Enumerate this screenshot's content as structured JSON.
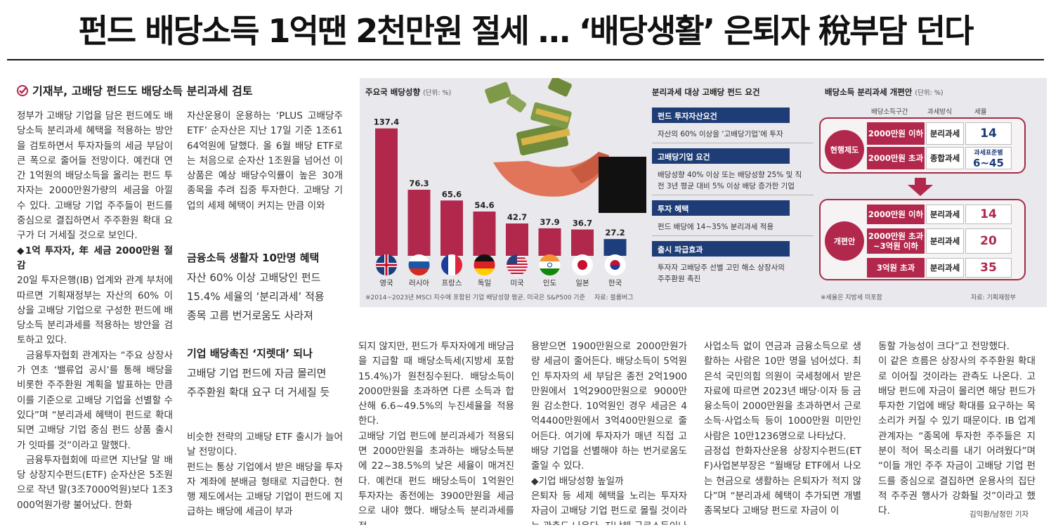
{
  "headline": "펀드 배당소득 1억땐 2천만원 절세 … ‘배당생활’ 은퇴자 稅부담 던다",
  "subhead": "기재부, 고배당 펀드도 배당소득 분리과세 검토",
  "col1": [
    "정부가 고배당 기업을 담은 펀드에도 배당소득 분리과세 혜택을 적용하는 방안을 검토하면서 투자자들의 세금 부담이 큰 폭으로 줄어들 전망이다. 예컨대 연간 1억원의 배당소득을 올리는 펀드 투자자는 2000만원가량의 세금을 아낄 수 있다. 고배당 기업 주주들이 펀드를 중심으로 결집하면서 주주환원 확대 요구가 더 거세질 것으로 보인다.",
    "◆1억 투자자, 年 세금 2000만원 절감",
    "20일 투자은행(IB) 업계와 관계 부처에 따르면 기획재정부는 자산의 60% 이상을 고배당 기업으로 구성한 펀드에 배당소득 분리과세를 적용하는 방안을 검토하고 있다.",
    "금융투자협회 관계자는 “주요 상장사가 연초 ‘밸류업 공시’를 통해 배당을 비롯한 주주환원 계획을 발표하는 만큼 이를 기준으로 고배당 기업을 선별할 수 있다”며 “분리과세 혜택이 펀드로 확대되면 고배당 기업 중심 펀드 상품 출시가 잇따를 것”이라고 말했다.",
    "금융투자협회에 따르면 지난달 말 배당 상장지수펀드(ETF) 순자산은 5조원으로 작년 말(3조7000억원)보다 1조3000억원가량 불어났다. 한화"
  ],
  "col2": "자산운용이 운용하는 ‘PLUS 고배당주 ETF’ 순자산은 지난 17일 기준 1조6164억원에 달했다. 올 6월 배당 ETF로는 처음으로 순자산 1조원을 넘어선 이 상품은 예상 배당수익률이 높은 30개 종목을 추려 집중 투자한다. 고배당 기업의 세제 혜택이 커지는 만큼 이와",
  "mid": {
    "h1": "금융소득 생활자 10만명 혜택",
    "t1": [
      "자산 60% 이상 고배당인 펀드",
      "15.4% 세율의 ‘분리과세’ 적용",
      "종목 고름 번거로움도 사라져"
    ],
    "h2": "기업 배당촉진 ‘지렛대’ 되나",
    "t2": [
      "고배당 기업 펀드에 자금 몰리면",
      "주주환원 확대 요구 더 거세질 듯"
    ]
  },
  "col2b": "비슷한 전략의 고배당 ETF 출시가 늘어날 전망이다.\n펀드는 통상 기업에서 받은 배당을 투자자 계좌에 분배금 형태로 지급한다. 현행 제도에서는 고배당 기업이 펀드에 지급하는 배당에 세금이 부과",
  "col3": "되지 않지만, 펀드가 투자자에게 배당금을 지급할 때 배당소득세(지방세 포함 15.4%)가 원천징수된다. 배당소득이 2000만원을 초과하면 다른 소득과 합산해 6.6~49.5%의 누진세율을 적용한다.\n고배당 기업 펀드에 분리과세가 적용되면 2000만원을 초과하는 배당소득분에 22~38.5%의 낮은 세율이 매겨진다. 예컨대 펀드 배당소득이 1억원인 투자자는 종전에는 3900만원을 세금으로 내야 했다. 배당소득 분리과세를 적",
  "col4": "용받으면 1900만원으로 2000만원가량 세금이 줄어든다. 배당소득이 5억원인 투자자의 세 부담은 종전 2억1900만원에서 1억2900만원으로 9000만원 감소한다. 10억원인 경우 세금은 4억4400만원에서 3억400만원으로 줄어든다. 여기에 투자자가 매년 직접 고배당 기업을 선별해야 하는 번거로움도 줄일 수 있다.\n◆기업 배당성향 높일까\n은퇴자 등 세제 혜택을 노리는 투자자 자금이 고배당 기업 펀드로 몰릴 것이라는 관측도 나온다. 지난해 근로소득이나",
  "col5": "사업소득 없이 연금과 금융소득으로 생활하는 사람은 10만 명을 넘어섰다. 최은석 국민의힘 의원이 국세청에서 받은 자료에 따르면 2023년 배당·이자 등 금융소득이 2000만원을 초과하면서 근로소득·사업소득 등이 1000만원 미만인 사람은 10만1236명으로 나타났다.\n금정섭 한화자산운용 상장지수펀드(ETF)사업본부장은 “월배당 ETF에서 나오는 현금으로 생활하는 은퇴자가 적지 않다”며 “분리과세 혜택이 추가되면 개별 종목보다 고배당 펀드로 자금이 이",
  "col6": "동할 가능성이 크다”고 전망했다.\n이 같은 흐름은 상장사의 주주환원 확대로 이어질 것이라는 관측도 나온다. 고배당 펀드에 자금이 몰리면 해당 펀드가 투자한 기업에 배당 확대를 요구하는 목소리가 커질 수 있기 때문이다. IB 업계 관계자는 “종목에 투자한 주주들은 지분이 적어 목소리를 내기 어려웠다”며 “이들 개인 주주 자금이 고배당 기업 펀드를 중심으로 결집하면 운용사의 집단적 주주권 행사가 강화될 것”이라고 했다.",
  "byline": "김익환/남정민 기자",
  "chart_data": {
    "type": "bar",
    "title": "주요국 배당성향",
    "unit": "(단위: %)",
    "categories": [
      "영국",
      "러시아",
      "프랑스",
      "독일",
      "미국",
      "인도",
      "일본",
      "한국"
    ],
    "values": [
      137.4,
      76.3,
      65.6,
      54.6,
      42.7,
      37.9,
      36.7,
      27.2
    ],
    "value_labels": [
      "137.4",
      "76.3",
      "65.6",
      "54.6",
      "42.7",
      "37.9",
      "36.7",
      "27.2"
    ],
    "highlight_color": "#1d3d7c",
    "bar_color": "#b2284d",
    "note": "※2014~2023년 MSCI 지수에 포함된 기업 배당성향 평균. 미국은 S&P500 기준",
    "source": "자료: 블룸버그"
  },
  "requirements": {
    "title": "분리과세 대상 고배당 펀드 요건",
    "items": [
      {
        "h": "펀드 투자자산요건",
        "b": "자산의 60% 이상을 ‘고배당기업’에 투자"
      },
      {
        "h": "고배당기업 요건",
        "b": "배당성향 40% 이상 또는 배당성향 25% 및 직전 3년 평균 대비 5% 이상 배당 증가한 기업"
      },
      {
        "h": "투자 혜택",
        "b": "펀드 배당에 14~35% 분리과세 적용"
      },
      {
        "h": "출시 파급효과",
        "b": "투자자 고배당주 선별 고민 해소 상장사의 주주환원 촉진"
      }
    ]
  },
  "reform": {
    "title": "배당소득 분리과세 개편안",
    "unit": "(단위: %)",
    "cols": [
      "배당소득구간",
      "과세방식",
      "세율"
    ],
    "current_label": "현행제도",
    "current": [
      {
        "range": "2000만원 이하",
        "method": "분리과세",
        "rate": "14"
      },
      {
        "range": "2000만원 초과",
        "method": "종합과세",
        "rate_top": "과세표준별",
        "rate": "6~45"
      }
    ],
    "new_label": "개편안",
    "new": [
      {
        "range": "2000만원 이하",
        "method": "분리과세",
        "rate": "14"
      },
      {
        "range": "2000만원 초과 ~3억원 이하",
        "method": "분리과세",
        "rate": "20"
      },
      {
        "range": "3억원 초과",
        "method": "분리과세",
        "rate": "35"
      }
    ],
    "note": "※세율은 지방세 미포함",
    "source": "자료: 기획재정부"
  }
}
